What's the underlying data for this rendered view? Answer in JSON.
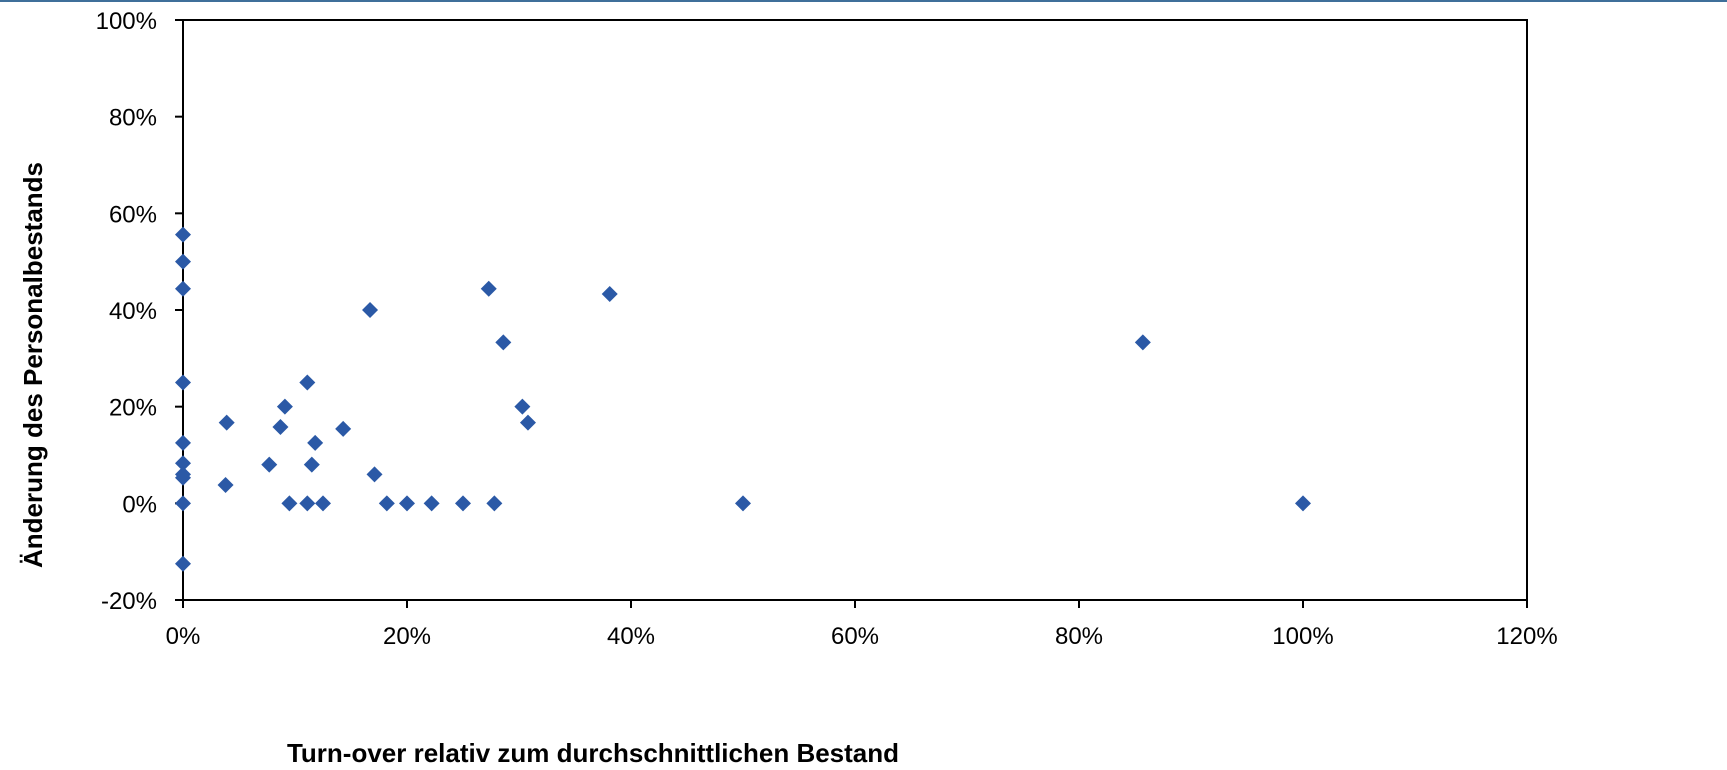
{
  "chart_data": {
    "type": "scatter",
    "title": "",
    "xlabel": "Turn-over relativ zum durchschnittlichen Bestand",
    "ylabel": "Änderung des Personalbestands",
    "xlim": [
      0,
      120
    ],
    "ylim": [
      -20,
      100
    ],
    "x_ticks": [
      "0%",
      "20%",
      "40%",
      "60%",
      "80%",
      "100%",
      "120%"
    ],
    "y_ticks": [
      "-20%",
      "0%",
      "20%",
      "40%",
      "60%",
      "80%",
      "100%"
    ],
    "x_unit": "%",
    "y_unit": "%",
    "grid": false,
    "legend": "none",
    "marker": "diamond",
    "marker_color": "#2b59a6",
    "axis_color": "#000000",
    "header_rule_color": "#3f6f9a",
    "series": [
      {
        "points": [
          {
            "x": 0,
            "y": 55.6
          },
          {
            "x": 0,
            "y": 50.0
          },
          {
            "x": 0,
            "y": 44.4
          },
          {
            "x": 0,
            "y": 25.0
          },
          {
            "x": 0,
            "y": 12.5
          },
          {
            "x": 0,
            "y": 8.3
          },
          {
            "x": 0,
            "y": 6.0
          },
          {
            "x": 0,
            "y": 5.3
          },
          {
            "x": 0,
            "y": 0.0
          },
          {
            "x": 0,
            "y": -12.5
          },
          {
            "x": 3.8,
            "y": 3.8
          },
          {
            "x": 3.9,
            "y": 16.7
          },
          {
            "x": 7.7,
            "y": 8.0
          },
          {
            "x": 8.7,
            "y": 15.8
          },
          {
            "x": 9.1,
            "y": 20.0
          },
          {
            "x": 9.5,
            "y": 0.0
          },
          {
            "x": 11.1,
            "y": 25.0
          },
          {
            "x": 11.1,
            "y": 0.0
          },
          {
            "x": 11.5,
            "y": 8.0
          },
          {
            "x": 11.8,
            "y": 12.5
          },
          {
            "x": 12.5,
            "y": 0.0
          },
          {
            "x": 14.3,
            "y": 15.4
          },
          {
            "x": 16.7,
            "y": 40.0
          },
          {
            "x": 17.1,
            "y": 6.0
          },
          {
            "x": 18.2,
            "y": 0.0
          },
          {
            "x": 20.0,
            "y": 0.0
          },
          {
            "x": 22.2,
            "y": 0.0
          },
          {
            "x": 25.0,
            "y": 0.0
          },
          {
            "x": 27.3,
            "y": 44.4
          },
          {
            "x": 27.8,
            "y": 0.0
          },
          {
            "x": 28.6,
            "y": 33.3
          },
          {
            "x": 30.3,
            "y": 20.0
          },
          {
            "x": 30.8,
            "y": 16.7
          },
          {
            "x": 38.1,
            "y": 43.3
          },
          {
            "x": 50.0,
            "y": 0.0
          },
          {
            "x": 85.7,
            "y": 33.3
          },
          {
            "x": 100.0,
            "y": 0.0
          }
        ]
      }
    ]
  }
}
